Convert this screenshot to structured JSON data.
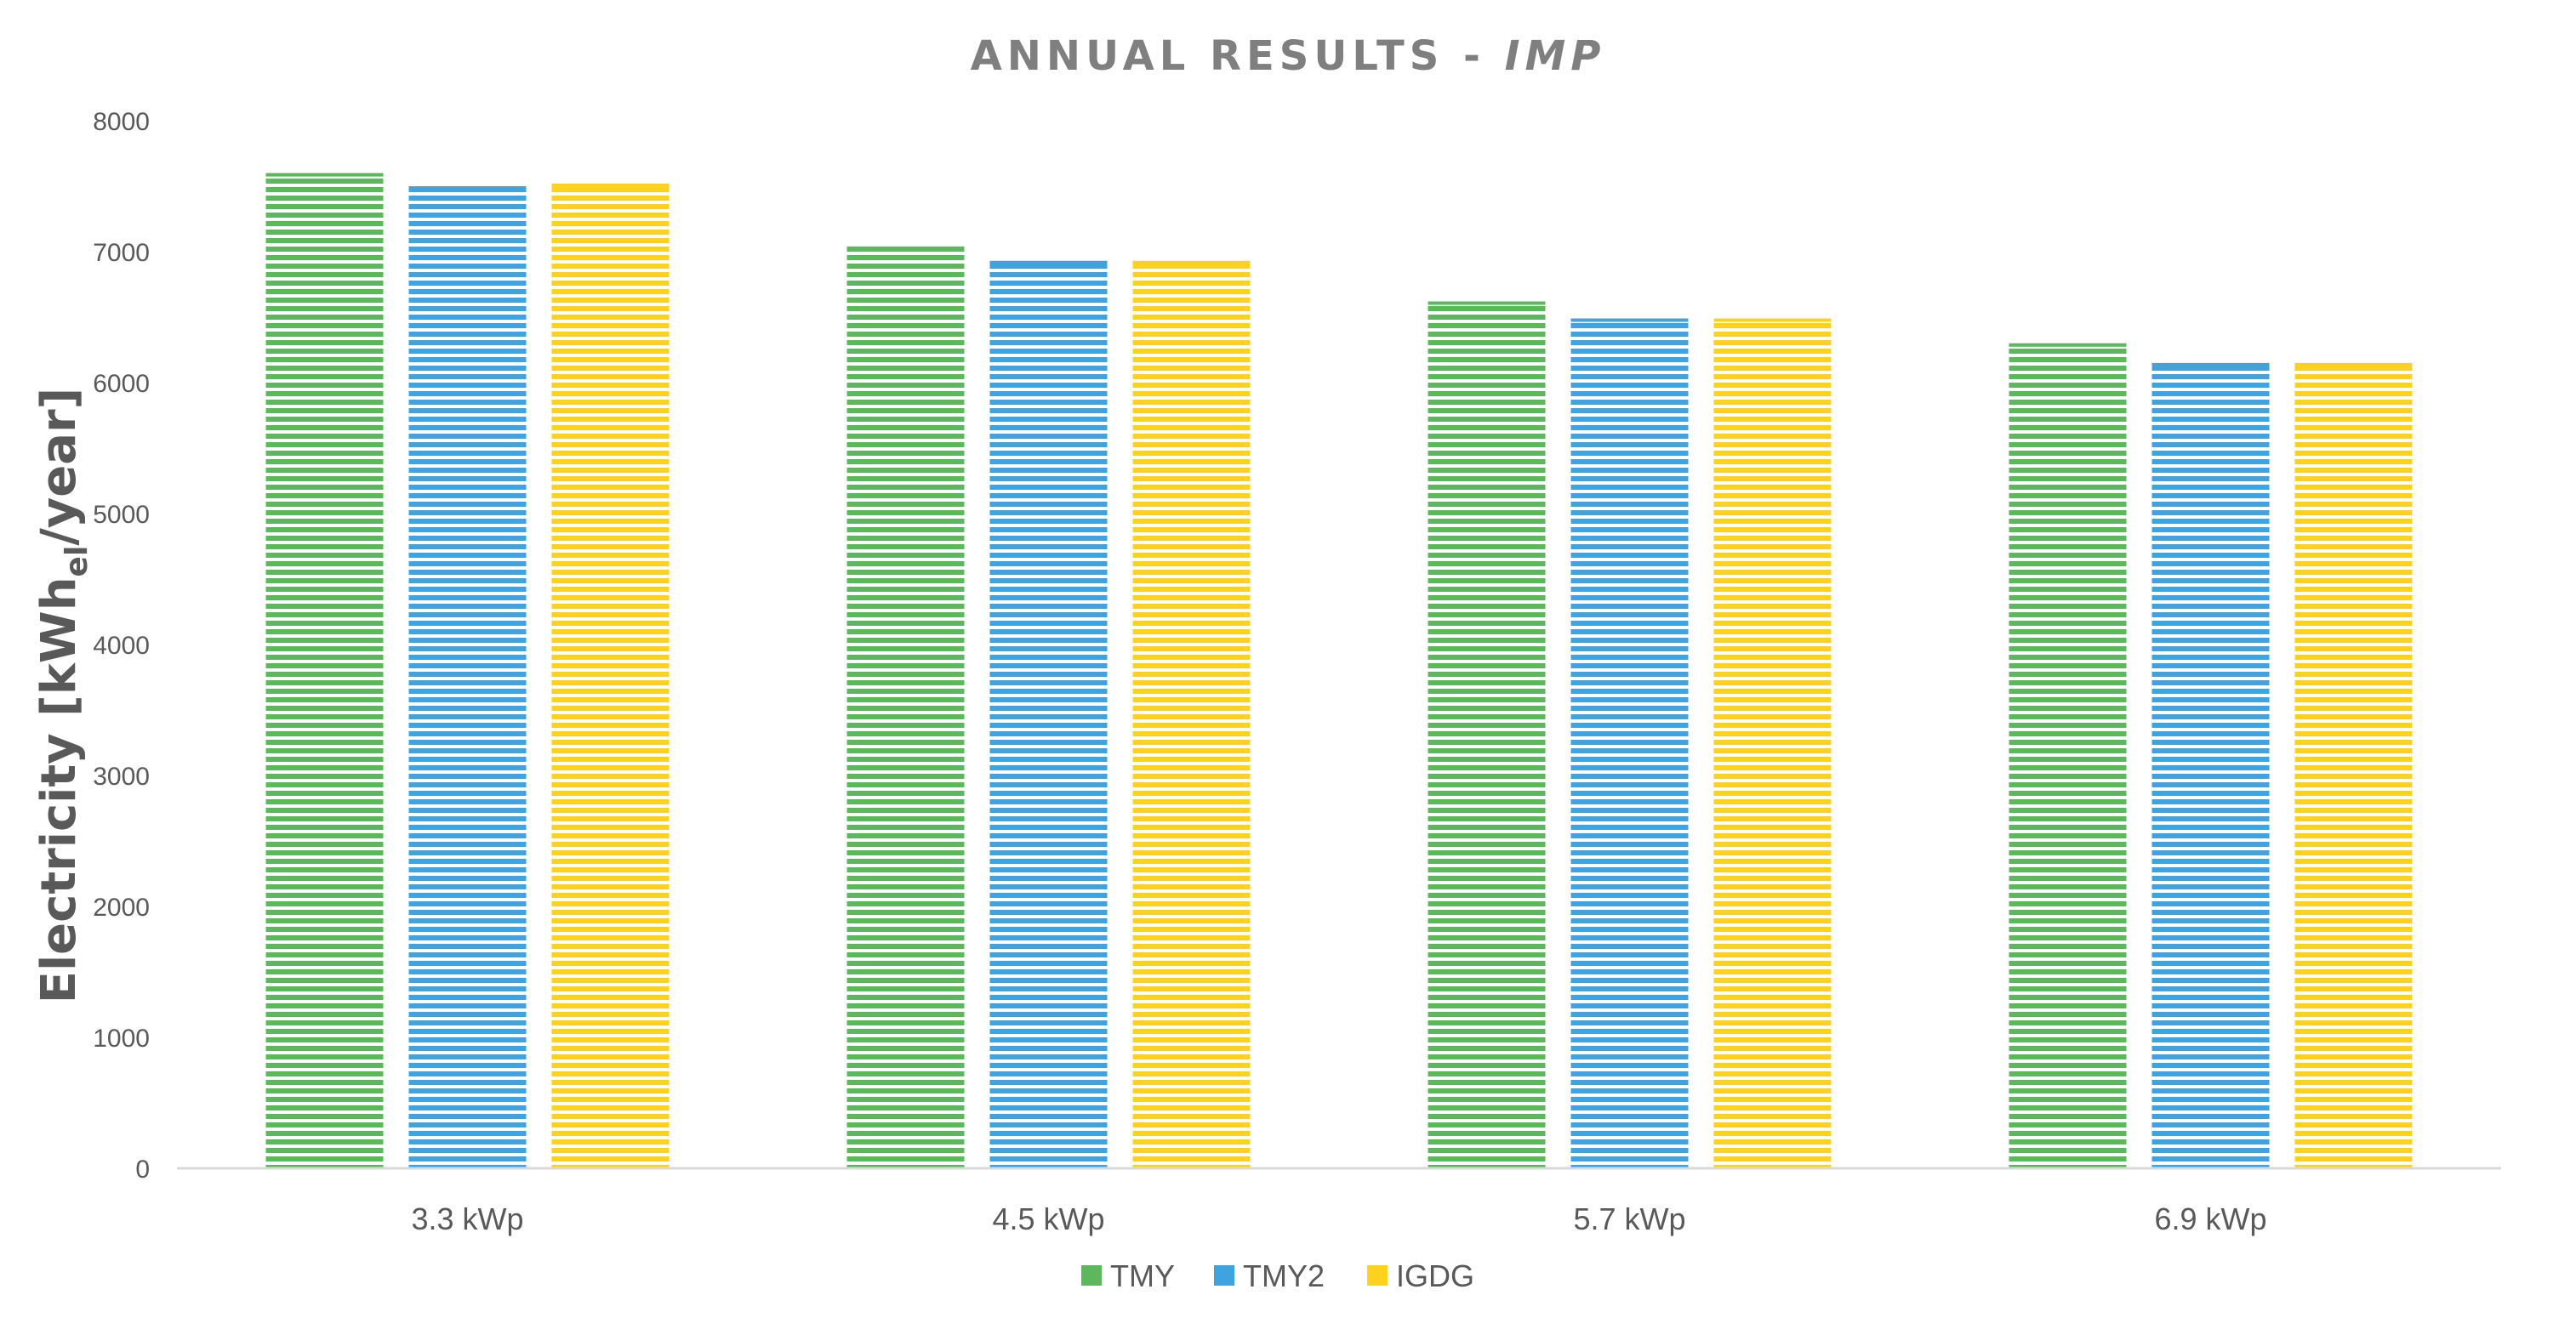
{
  "chart_data": {
    "type": "bar",
    "title": "ANNUAL RESULTS - ",
    "title_italic": "IMP",
    "ylabel_main": "Electricity [kWh",
    "ylabel_sub": "el",
    "ylabel_end": "/year]",
    "xlabel": "",
    "ylim": [
      0,
      8000
    ],
    "yticks": [
      0,
      1000,
      2000,
      3000,
      4000,
      5000,
      6000,
      7000,
      8000
    ],
    "grid": false,
    "legend_position": "bottom",
    "categories": [
      "3.3 kWp",
      "4.5 kWp",
      "5.7 kWp",
      "6.9 kWp"
    ],
    "series": [
      {
        "name": "TMY",
        "color": "#5cb85c",
        "values": [
          7600,
          7040,
          6620,
          6300
        ]
      },
      {
        "name": "TMY2",
        "color": "#3fa3e0",
        "values": [
          7500,
          6930,
          6490,
          6150
        ]
      },
      {
        "name": "IGDG",
        "color": "#fcd21f",
        "values": [
          7520,
          6930,
          6490,
          6150
        ]
      }
    ]
  }
}
